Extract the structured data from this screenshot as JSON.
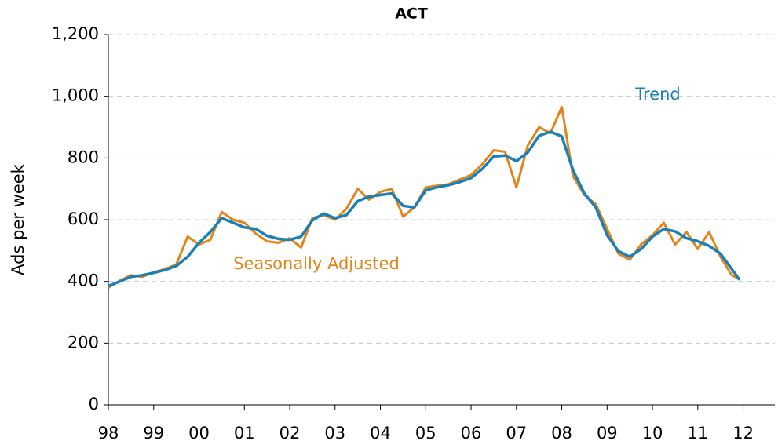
{
  "chart_data": {
    "type": "line",
    "title": "ACT",
    "y_label": "Ads per week",
    "annotations": [
      {
        "text": "Trend",
        "color": "#1a80b6"
      },
      {
        "text": "Seasonally Adjusted",
        "color": "#e0861a"
      }
    ],
    "x": [
      1998,
      1998.25,
      1998.5,
      1998.75,
      1999,
      1999.25,
      1999.5,
      1999.75,
      2000,
      2000.25,
      2000.5,
      2000.75,
      2001,
      2001.25,
      2001.5,
      2001.75,
      2002,
      2002.25,
      2002.5,
      2002.75,
      2003,
      2003.25,
      2003.5,
      2003.75,
      2004,
      2004.25,
      2004.5,
      2004.75,
      2005,
      2005.25,
      2005.5,
      2005.75,
      2006,
      2006.25,
      2006.5,
      2006.75,
      2007,
      2007.25,
      2007.5,
      2007.75,
      2008,
      2008.25,
      2008.5,
      2008.75,
      2009,
      2009.25,
      2009.5,
      2009.75,
      2010,
      2010.25,
      2010.5,
      2010.75,
      2011,
      2011.25,
      2011.5,
      2011.75,
      2011.92
    ],
    "series": [
      {
        "name": "Seasonally Adjusted",
        "color": "#e0861a",
        "values": [
          380,
          402,
          420,
          415,
          430,
          440,
          455,
          545,
          520,
          535,
          625,
          600,
          590,
          555,
          530,
          525,
          540,
          510,
          605,
          615,
          600,
          635,
          700,
          665,
          690,
          700,
          610,
          640,
          705,
          710,
          715,
          730,
          745,
          780,
          825,
          820,
          705,
          840,
          900,
          880,
          965,
          740,
          680,
          650,
          570,
          490,
          470,
          520,
          550,
          590,
          520,
          560,
          505,
          560,
          480,
          420,
          408
        ]
      },
      {
        "name": "Trend",
        "color": "#1a80b6",
        "values": [
          385,
          400,
          415,
          420,
          428,
          437,
          450,
          480,
          525,
          560,
          605,
          590,
          575,
          570,
          548,
          538,
          535,
          545,
          598,
          620,
          605,
          615,
          660,
          675,
          680,
          685,
          645,
          640,
          695,
          705,
          712,
          722,
          735,
          765,
          805,
          808,
          790,
          818,
          872,
          885,
          870,
          760,
          685,
          640,
          550,
          498,
          480,
          505,
          545,
          570,
          562,
          540,
          530,
          515,
          490,
          440,
          405
        ]
      }
    ],
    "xlim": [
      1998,
      2012.7
    ],
    "xticks": [
      {
        "value": 1998,
        "label": "98"
      },
      {
        "value": 1999,
        "label": "99"
      },
      {
        "value": 2000,
        "label": "00"
      },
      {
        "value": 2001,
        "label": "01"
      },
      {
        "value": 2002,
        "label": "02"
      },
      {
        "value": 2003,
        "label": "03"
      },
      {
        "value": 2004,
        "label": "04"
      },
      {
        "value": 2005,
        "label": "05"
      },
      {
        "value": 2006,
        "label": "06"
      },
      {
        "value": 2007,
        "label": "07"
      },
      {
        "value": 2008,
        "label": "08"
      },
      {
        "value": 2009,
        "label": "09"
      },
      {
        "value": 2010,
        "label": "10"
      },
      {
        "value": 2011,
        "label": "11"
      },
      {
        "value": 2012,
        "label": "12"
      }
    ],
    "ylim": [
      0,
      1200
    ],
    "yticks": [
      0,
      200,
      400,
      600,
      800,
      {
        "value": 1000,
        "label": "1,000"
      },
      {
        "value": 1200,
        "label": "1,200"
      }
    ],
    "grid": true
  }
}
